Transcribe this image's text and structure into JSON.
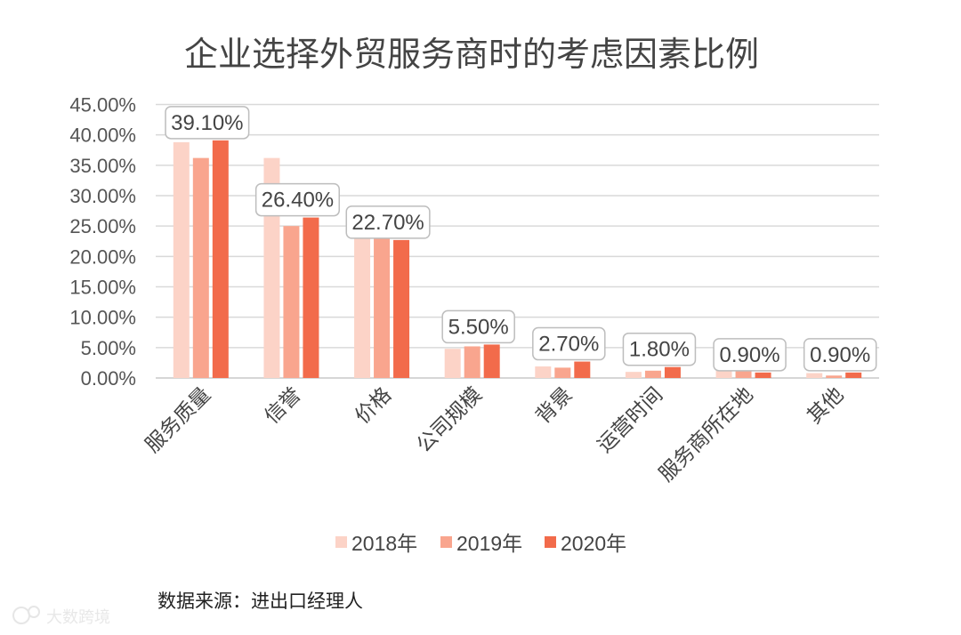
{
  "chart_data": {
    "type": "bar",
    "title": "企业选择外贸服务商时的考虑因素比例",
    "categories": [
      "服务质量",
      "信誉",
      "价格",
      "公司规模",
      "背景",
      "运营时间",
      "服务商所在地",
      "其他"
    ],
    "series": [
      {
        "name": "2018年",
        "color": "#fcd3c7",
        "values": [
          38.8,
          36.2,
          24.5,
          4.8,
          1.9,
          1.0,
          2.2,
          0.8
        ]
      },
      {
        "name": "2019年",
        "color": "#f9a58e",
        "values": [
          36.2,
          25.0,
          23.6,
          5.2,
          1.7,
          1.2,
          1.8,
          0.4
        ]
      },
      {
        "name": "2020年",
        "color": "#f26b4b",
        "values": [
          39.1,
          26.4,
          22.7,
          5.5,
          2.7,
          1.8,
          0.9,
          0.9
        ]
      }
    ],
    "data_labels": [
      "39.10%",
      "26.40%",
      "22.70%",
      "5.50%",
      "2.70%",
      "1.80%",
      "0.90%",
      "0.90%"
    ],
    "y_ticks": [
      "0.00%",
      "5.00%",
      "10.00%",
      "15.00%",
      "20.00%",
      "25.00%",
      "30.00%",
      "35.00%",
      "40.00%",
      "45.00%"
    ],
    "ylim": [
      0,
      45
    ],
    "grid": true,
    "legend": "bottom",
    "xlabel": "",
    "ylabel": ""
  },
  "source": "数据来源：进出口经理人",
  "watermark": "大数跨境"
}
